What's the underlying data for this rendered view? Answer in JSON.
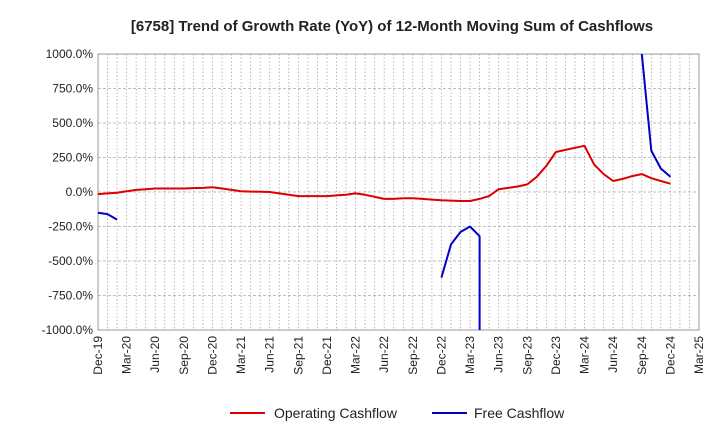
{
  "chart_data": {
    "type": "line",
    "title": "[6758]  Trend of Growth Rate (YoY) of 12-Month Moving Sum of Cashflows",
    "ylim": [
      -1000,
      1000
    ],
    "yticks": [
      1000,
      750,
      500,
      250,
      0,
      -250,
      -500,
      -750,
      -1000
    ],
    "ytick_labels": [
      "1000.0%",
      "750.0%",
      "500.0%",
      "250.0%",
      "0.0%",
      "-250.0%",
      "-500.0%",
      "-750.0%",
      "-1000.0%"
    ],
    "x_start": "Dec-19",
    "x_end": "Mar-25",
    "xtick_labels": [
      "Dec-19",
      "Mar-20",
      "Jun-20",
      "Sep-20",
      "Dec-20",
      "Mar-21",
      "Jun-21",
      "Sep-21",
      "Dec-21",
      "Mar-22",
      "Jun-22",
      "Sep-22",
      "Dec-22",
      "Mar-23",
      "Jun-23",
      "Sep-23",
      "Dec-23",
      "Mar-24",
      "Jun-24",
      "Sep-24",
      "Dec-24",
      "Mar-25"
    ],
    "grid": true,
    "legend_position": "bottom",
    "series": [
      {
        "name": "Operating Cashflow",
        "color": "#dd0000",
        "x": [
          "Dec-19",
          "Jan-20",
          "Feb-20",
          "Mar-20",
          "Apr-20",
          "May-20",
          "Jun-20",
          "Jul-20",
          "Aug-20",
          "Sep-20",
          "Oct-20",
          "Nov-20",
          "Dec-20",
          "Jan-21",
          "Feb-21",
          "Mar-21",
          "Apr-21",
          "May-21",
          "Jun-21",
          "Jul-21",
          "Aug-21",
          "Sep-21",
          "Oct-21",
          "Nov-21",
          "Dec-21",
          "Jan-22",
          "Feb-22",
          "Mar-22",
          "Apr-22",
          "May-22",
          "Jun-22",
          "Jul-22",
          "Aug-22",
          "Sep-22",
          "Oct-22",
          "Nov-22",
          "Dec-22",
          "Jan-23",
          "Feb-23",
          "Mar-23",
          "Apr-23",
          "May-23",
          "Jun-23",
          "Jul-23",
          "Aug-23",
          "Sep-23",
          "Oct-23",
          "Nov-23",
          "Dec-23",
          "Jan-24",
          "Feb-24",
          "Mar-24",
          "Apr-24",
          "May-24",
          "Jun-24",
          "Jul-24",
          "Aug-24",
          "Sep-24",
          "Oct-24",
          "Nov-24",
          "Dec-24"
        ],
        "values": [
          -15,
          -10,
          -5,
          5,
          15,
          20,
          25,
          25,
          25,
          25,
          28,
          30,
          35,
          25,
          15,
          5,
          3,
          2,
          0,
          -10,
          -20,
          -30,
          -30,
          -30,
          -30,
          -25,
          -20,
          -10,
          -20,
          -35,
          -50,
          -50,
          -45,
          -45,
          -50,
          -55,
          -60,
          -62,
          -65,
          -65,
          -50,
          -30,
          20,
          30,
          40,
          55,
          110,
          190,
          290,
          305,
          320,
          335,
          200,
          130,
          80,
          95,
          115,
          130,
          100,
          80,
          60
        ]
      },
      {
        "name": "Free Cashflow",
        "color": "#0000cc",
        "segments": [
          {
            "x": [
              "Dec-19",
              "Jan-20",
              "Feb-20"
            ],
            "values": [
              -150,
              -160,
              -200
            ]
          },
          {
            "x": [
              "Dec-22",
              "Jan-23",
              "Feb-23",
              "Mar-23",
              "Apr-23",
              "Apr-23"
            ],
            "values": [
              -620,
              -380,
              -290,
              -250,
              -320,
              -1000
            ]
          },
          {
            "x": [
              "Sep-24",
              "Oct-24",
              "Nov-24",
              "Dec-24"
            ],
            "values": [
              1000,
              300,
              170,
              110
            ]
          }
        ]
      }
    ]
  }
}
